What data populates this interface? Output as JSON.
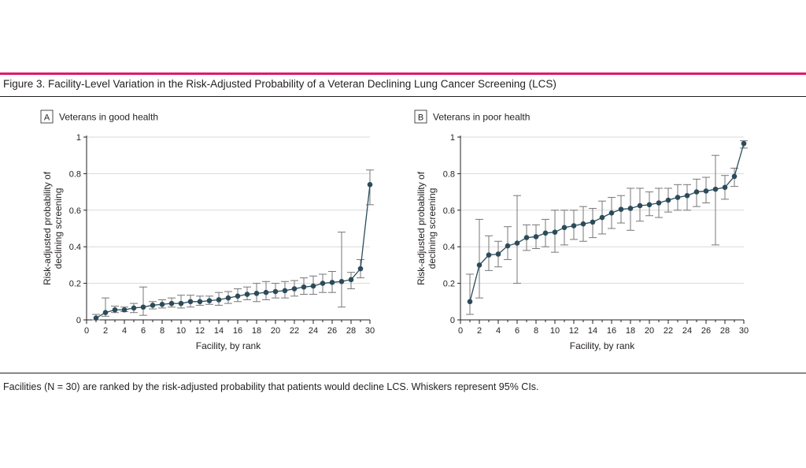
{
  "figure": {
    "title": "Figure 3. Facility-Level Variation in the Risk-Adjusted Probability of a Veteran Declining Lung Cancer Screening (LCS)",
    "caption": "Facilities (N = 30) are ranked by the risk-adjusted probability that patients would decline LCS. Whiskers represent 95% CIs.",
    "accent_color": "#e0196c",
    "marker_color": "#2b4b5a",
    "whisker_color": "#777777",
    "grid_color": "#d9d9d9"
  },
  "chart_data": [
    {
      "type": "line",
      "panel_letter": "A",
      "title": "Veterans in good health",
      "xlabel": "Facility, by rank",
      "ylabel_lines": [
        "Risk-adjusted probability of",
        "declining screening"
      ],
      "xlim": [
        0,
        30
      ],
      "ylim": [
        0,
        1
      ],
      "xticks": [
        "0",
        "2",
        "4",
        "6",
        "8",
        "10",
        "12",
        "14",
        "16",
        "18",
        "20",
        "22",
        "24",
        "26",
        "28",
        "30"
      ],
      "yticks": [
        "0",
        "0.2",
        "0.4",
        "0.6",
        "0.8",
        "1"
      ],
      "grid": true,
      "x": [
        1,
        2,
        3,
        4,
        5,
        6,
        7,
        8,
        9,
        10,
        11,
        12,
        13,
        14,
        15,
        16,
        17,
        18,
        19,
        20,
        21,
        22,
        23,
        24,
        25,
        26,
        27,
        28,
        29,
        30
      ],
      "values": [
        0.01,
        0.04,
        0.055,
        0.055,
        0.065,
        0.07,
        0.08,
        0.085,
        0.09,
        0.09,
        0.1,
        0.1,
        0.105,
        0.11,
        0.12,
        0.13,
        0.14,
        0.145,
        0.15,
        0.155,
        0.16,
        0.17,
        0.18,
        0.185,
        0.2,
        0.205,
        0.21,
        0.22,
        0.28,
        0.74
      ],
      "ci_low": [
        0.0,
        0.02,
        0.04,
        0.045,
        0.04,
        0.025,
        0.06,
        0.065,
        0.07,
        0.065,
        0.07,
        0.08,
        0.085,
        0.08,
        0.09,
        0.1,
        0.11,
        0.1,
        0.11,
        0.12,
        0.12,
        0.13,
        0.14,
        0.14,
        0.15,
        0.15,
        0.07,
        0.17,
        0.23,
        0.63
      ],
      "ci_high": [
        0.03,
        0.12,
        0.075,
        0.07,
        0.09,
        0.18,
        0.1,
        0.11,
        0.12,
        0.135,
        0.135,
        0.13,
        0.13,
        0.15,
        0.155,
        0.17,
        0.18,
        0.2,
        0.21,
        0.2,
        0.21,
        0.215,
        0.23,
        0.24,
        0.25,
        0.265,
        0.48,
        0.26,
        0.33,
        0.82
      ]
    },
    {
      "type": "line",
      "panel_letter": "B",
      "title": "Veterans in poor health",
      "xlabel": "Facility, by rank",
      "ylabel_lines": [
        "Risk-adjusted probability of",
        "declining screening"
      ],
      "xlim": [
        0,
        30
      ],
      "ylim": [
        0,
        1
      ],
      "xticks": [
        "0",
        "2",
        "4",
        "6",
        "8",
        "10",
        "12",
        "14",
        "16",
        "18",
        "20",
        "22",
        "24",
        "26",
        "28",
        "30"
      ],
      "yticks": [
        "0",
        "0.2",
        "0.4",
        "0.6",
        "0.8",
        "1"
      ],
      "grid": true,
      "x": [
        1,
        2,
        3,
        4,
        5,
        6,
        7,
        8,
        9,
        10,
        11,
        12,
        13,
        14,
        15,
        16,
        17,
        18,
        19,
        20,
        21,
        22,
        23,
        24,
        25,
        26,
        27,
        28,
        29,
        30
      ],
      "values": [
        0.1,
        0.3,
        0.355,
        0.36,
        0.405,
        0.42,
        0.45,
        0.455,
        0.475,
        0.48,
        0.505,
        0.515,
        0.525,
        0.535,
        0.56,
        0.585,
        0.605,
        0.61,
        0.625,
        0.63,
        0.64,
        0.655,
        0.67,
        0.68,
        0.7,
        0.705,
        0.715,
        0.725,
        0.785,
        0.965
      ],
      "ci_low": [
        0.03,
        0.12,
        0.27,
        0.29,
        0.33,
        0.2,
        0.38,
        0.39,
        0.4,
        0.37,
        0.41,
        0.44,
        0.43,
        0.45,
        0.47,
        0.5,
        0.53,
        0.49,
        0.54,
        0.57,
        0.56,
        0.59,
        0.6,
        0.6,
        0.62,
        0.64,
        0.41,
        0.66,
        0.73,
        0.94
      ],
      "ci_high": [
        0.25,
        0.55,
        0.46,
        0.43,
        0.51,
        0.68,
        0.52,
        0.52,
        0.55,
        0.6,
        0.6,
        0.6,
        0.62,
        0.61,
        0.65,
        0.67,
        0.68,
        0.72,
        0.72,
        0.7,
        0.72,
        0.72,
        0.74,
        0.74,
        0.77,
        0.78,
        0.9,
        0.79,
        0.83,
        0.98
      ]
    }
  ]
}
